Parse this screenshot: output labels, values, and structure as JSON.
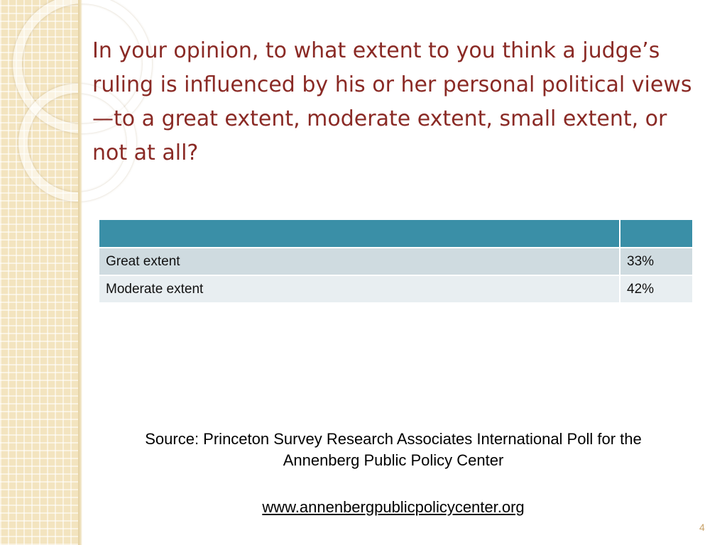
{
  "slide": {
    "title": "In your opinion, to what extent to you think a judge’s ruling is influenced by his or her personal political views—to a great extent, moderate extent, small extent, or not at all?",
    "table": {
      "header": [
        "",
        ""
      ],
      "rows": [
        {
          "label": "Great extent",
          "value": "33%"
        },
        {
          "label": "Moderate extent",
          "value": "42%"
        }
      ]
    },
    "source": {
      "line1": "Source:  Princeton Survey Research Associates International Poll for the",
      "line2": "Annenberg Public Policy Center",
      "url": "www.annenbergpublicpolicycenter.org"
    },
    "page_number": "4"
  },
  "colors": {
    "title": "#8a2a25",
    "table_header": "#3a8fa7",
    "row_odd": "#cfdbe0",
    "row_even": "#e8eef1",
    "side_panel": "#f3e4bf",
    "page_number": "#c9a36a"
  }
}
